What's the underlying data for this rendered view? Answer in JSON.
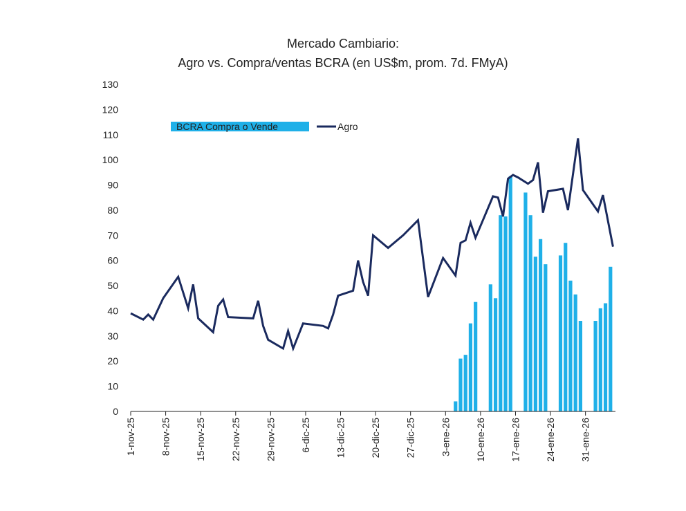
{
  "chart_data": {
    "type": "bar+line",
    "title": "Mercado Cambiario:",
    "subtitle": "Agro vs. Compra/ventas BCRA (en US$m, prom. 7d. FMyA)",
    "ylim": [
      0,
      130
    ],
    "yticks": [
      0,
      10,
      20,
      30,
      40,
      50,
      60,
      70,
      80,
      90,
      100,
      110,
      120,
      130
    ],
    "xlim": [
      0,
      97
    ],
    "xticks": [
      {
        "day": 0,
        "label": "1-nov-25"
      },
      {
        "day": 7,
        "label": "8-nov-25"
      },
      {
        "day": 14,
        "label": "15-nov-25"
      },
      {
        "day": 21,
        "label": "22-nov-25"
      },
      {
        "day": 28,
        "label": "29-nov-25"
      },
      {
        "day": 35,
        "label": "6-dic-25"
      },
      {
        "day": 42,
        "label": "13-dic-25"
      },
      {
        "day": 49,
        "label": "20-dic-25"
      },
      {
        "day": 56,
        "label": "27-dic-25"
      },
      {
        "day": 63,
        "label": "3-ene-26"
      },
      {
        "day": 70,
        "label": "10-ene-26"
      },
      {
        "day": 77,
        "label": "17-ene-26"
      },
      {
        "day": 84,
        "label": "24-ene-26"
      },
      {
        "day": 91,
        "label": "31-ene-26"
      }
    ],
    "legend": {
      "placement": "top-left",
      "bar_label": "BCRA Compra o Vende",
      "line_label": "Agro"
    },
    "colors": {
      "bars": "#1FB0E8",
      "line": "#1A2A5E",
      "axis": "#222222"
    },
    "series": [
      {
        "name": "BCRA Compra o Vende",
        "type": "bar",
        "points": [
          {
            "x": 65,
            "y": 4
          },
          {
            "x": 66,
            "y": 21
          },
          {
            "x": 67,
            "y": 22.5
          },
          {
            "x": 68,
            "y": 35
          },
          {
            "x": 69,
            "y": 43.5
          },
          {
            "x": 72,
            "y": 50.5
          },
          {
            "x": 73,
            "y": 45
          },
          {
            "x": 74,
            "y": 78
          },
          {
            "x": 75,
            "y": 77.5
          },
          {
            "x": 76,
            "y": 93.5
          },
          {
            "x": 79,
            "y": 87
          },
          {
            "x": 80,
            "y": 78
          },
          {
            "x": 81,
            "y": 61.5
          },
          {
            "x": 82,
            "y": 68.5
          },
          {
            "x": 83,
            "y": 58.5
          },
          {
            "x": 86,
            "y": 62
          },
          {
            "x": 87,
            "y": 67
          },
          {
            "x": 88,
            "y": 52
          },
          {
            "x": 89,
            "y": 46.5
          },
          {
            "x": 90,
            "y": 36
          },
          {
            "x": 93,
            "y": 36
          },
          {
            "x": 94,
            "y": 41
          },
          {
            "x": 95,
            "y": 43
          },
          {
            "x": 96,
            "y": 57.5
          }
        ]
      },
      {
        "name": "Agro",
        "type": "line",
        "points": [
          {
            "x": 0,
            "y": 39
          },
          {
            "x": 2.5,
            "y": 36.5
          },
          {
            "x": 3.5,
            "y": 38.5
          },
          {
            "x": 4.5,
            "y": 36.5
          },
          {
            "x": 6.5,
            "y": 45
          },
          {
            "x": 9.5,
            "y": 53.5
          },
          {
            "x": 11.5,
            "y": 41
          },
          {
            "x": 12.5,
            "y": 50.5
          },
          {
            "x": 13.5,
            "y": 37
          },
          {
            "x": 16.5,
            "y": 31.5
          },
          {
            "x": 17.5,
            "y": 42
          },
          {
            "x": 18.5,
            "y": 44.5
          },
          {
            "x": 19.5,
            "y": 37.5
          },
          {
            "x": 24.5,
            "y": 37
          },
          {
            "x": 25.5,
            "y": 44
          },
          {
            "x": 26.5,
            "y": 34
          },
          {
            "x": 27.5,
            "y": 28.5
          },
          {
            "x": 30.5,
            "y": 25
          },
          {
            "x": 31.5,
            "y": 32
          },
          {
            "x": 32.5,
            "y": 25
          },
          {
            "x": 34.5,
            "y": 35
          },
          {
            "x": 38.5,
            "y": 34
          },
          {
            "x": 39.5,
            "y": 33
          },
          {
            "x": 40.5,
            "y": 38.5
          },
          {
            "x": 41.5,
            "y": 46
          },
          {
            "x": 44.5,
            "y": 48
          },
          {
            "x": 45.5,
            "y": 60
          },
          {
            "x": 46.5,
            "y": 51.5
          },
          {
            "x": 47.5,
            "y": 46
          },
          {
            "x": 48.5,
            "y": 70
          },
          {
            "x": 51.5,
            "y": 65
          },
          {
            "x": 54.5,
            "y": 70
          },
          {
            "x": 57.5,
            "y": 76
          },
          {
            "x": 59.5,
            "y": 45.5
          },
          {
            "x": 62.5,
            "y": 61
          },
          {
            "x": 65,
            "y": 54
          },
          {
            "x": 66,
            "y": 67
          },
          {
            "x": 67,
            "y": 68
          },
          {
            "x": 68,
            "y": 75
          },
          {
            "x": 69,
            "y": 69
          },
          {
            "x": 72.5,
            "y": 85.5
          },
          {
            "x": 73.5,
            "y": 85
          },
          {
            "x": 74.5,
            "y": 77.5
          },
          {
            "x": 75.5,
            "y": 92.5
          },
          {
            "x": 76.5,
            "y": 94
          },
          {
            "x": 77.5,
            "y": 93
          },
          {
            "x": 79.5,
            "y": 90.5
          },
          {
            "x": 80.5,
            "y": 92
          },
          {
            "x": 81.5,
            "y": 99
          },
          {
            "x": 82.5,
            "y": 79
          },
          {
            "x": 83.5,
            "y": 87.5
          },
          {
            "x": 86.5,
            "y": 88.5
          },
          {
            "x": 87.5,
            "y": 80
          },
          {
            "x": 89.5,
            "y": 108.5
          },
          {
            "x": 90.5,
            "y": 88
          },
          {
            "x": 93.5,
            "y": 79.5
          },
          {
            "x": 94.5,
            "y": 86
          },
          {
            "x": 96.5,
            "y": 65.5
          }
        ]
      }
    ]
  }
}
